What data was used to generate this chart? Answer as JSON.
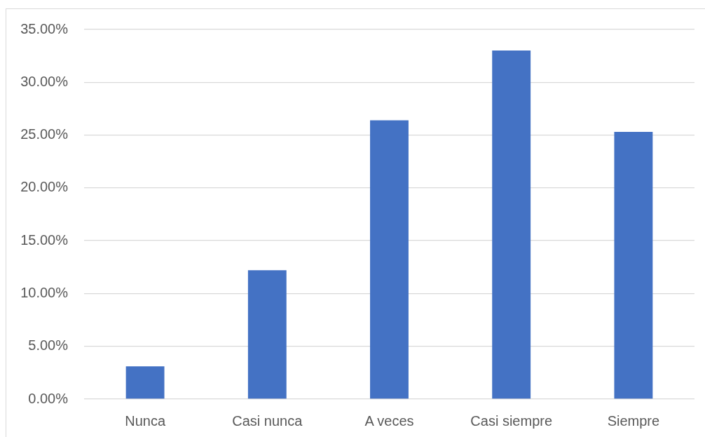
{
  "chart_data": {
    "type": "bar",
    "categories": [
      "Nunca",
      "Casi nunca",
      "A veces",
      "Casi siempre",
      "Siempre"
    ],
    "values": [
      3.1,
      12.2,
      26.4,
      33.0,
      25.3
    ],
    "color": "#4472c4",
    "ylim": [
      0,
      35
    ],
    "yticks": [
      {
        "value": 0,
        "label": "0.00%"
      },
      {
        "value": 5,
        "label": "5.00%"
      },
      {
        "value": 10,
        "label": "10.00%"
      },
      {
        "value": 15,
        "label": "15.00%"
      },
      {
        "value": 20,
        "label": "20.00%"
      },
      {
        "value": 25,
        "label": "25.00%"
      },
      {
        "value": 30,
        "label": "30.00%"
      },
      {
        "value": 35,
        "label": "35.00%"
      }
    ],
    "grid": "y"
  }
}
